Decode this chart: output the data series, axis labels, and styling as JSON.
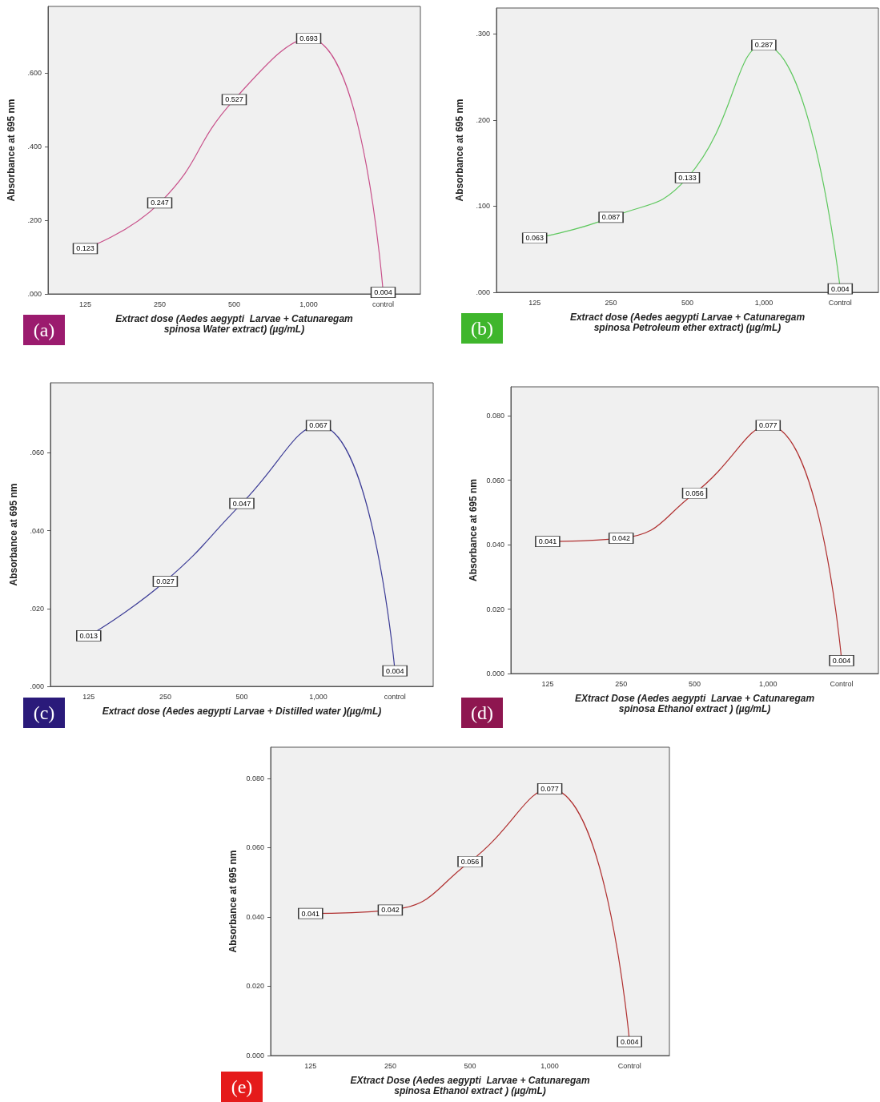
{
  "chart_data": [
    {
      "type": "line",
      "xlabel": "Extract dose (Aedes aegypti  Larvae + Catunaregam spinosa Water extract) (µg/mL)",
      "ylabel": "Absorbance at 695 nm",
      "categories": [
        "125",
        "250",
        "500",
        "1,000",
        "control"
      ],
      "series": [
        {
          "color": "#c8508a",
          "values": [
            0.123,
            0.247,
            0.527,
            0.693,
            0.004
          ]
        }
      ],
      "marker": "square",
      "ylim": [
        0,
        0.78
      ],
      "yticks": [
        {
          "value": 0,
          "label": ".000"
        },
        {
          "value": 0.2,
          "label": ".200"
        },
        {
          "value": 0.4,
          "label": ".400"
        },
        {
          "value": 0.6,
          "label": ".600"
        }
      ],
      "data_labels": true,
      "annotations": [
        "(a)"
      ]
    },
    {
      "type": "line",
      "xlabel": "Extract dose (Aedes aegypti Larvae + Catunaregam spinosa Petroleum ether extract) (µg/mL)",
      "ylabel": "Absorbance at 695 nm",
      "categories": [
        "125",
        "250",
        "500",
        "1,000",
        "Control"
      ],
      "series": [
        {
          "color": "#5ec85e",
          "values": [
            0.063,
            0.087,
            0.133,
            0.287,
            0.004
          ]
        }
      ],
      "marker": "square",
      "ylim": [
        0,
        0.33
      ],
      "yticks": [
        {
          "value": 0,
          "label": ".000"
        },
        {
          "value": 0.1,
          "label": ".100"
        },
        {
          "value": 0.2,
          "label": ".200"
        },
        {
          "value": 0.3,
          "label": ".300"
        }
      ],
      "data_labels": true,
      "annotations": [
        "(b)"
      ]
    },
    {
      "type": "line",
      "xlabel": "Extract dose (Aedes aegypti Larvae + Distilled water )(µg/mL)",
      "ylabel": "Absorbance at 695 nm",
      "categories": [
        "125",
        "250",
        "500",
        "1,000",
        "control"
      ],
      "series": [
        {
          "color": "#3c3c96",
          "values": [
            0.013,
            0.027,
            0.047,
            0.067,
            0.004
          ]
        }
      ],
      "marker": "square",
      "ylim": [
        0,
        0.078
      ],
      "yticks": [
        {
          "value": 0,
          "label": ".000"
        },
        {
          "value": 0.02,
          "label": ".020"
        },
        {
          "value": 0.04,
          "label": ".040"
        },
        {
          "value": 0.06,
          "label": ".060"
        }
      ],
      "data_labels": true,
      "annotations": [
        "(c)"
      ]
    },
    {
      "type": "line",
      "xlabel": "EXtract Dose (Aedes aegypti  Larvae + Catunaregam spinosa Ethanol extract ) (µg/mL)",
      "ylabel": "Absorbance at 695 nm",
      "categories": [
        "125",
        "250",
        "500",
        "1,000",
        "Control"
      ],
      "series": [
        {
          "color": "#b03030",
          "values": [
            0.041,
            0.042,
            0.056,
            0.077,
            0.004
          ]
        }
      ],
      "marker": "square",
      "ylim": [
        0,
        0.089
      ],
      "yticks": [
        {
          "value": 0,
          "label": "0.000"
        },
        {
          "value": 0.02,
          "label": "0.020"
        },
        {
          "value": 0.04,
          "label": "0.040"
        },
        {
          "value": 0.06,
          "label": "0.060"
        },
        {
          "value": 0.08,
          "label": "0.080"
        }
      ],
      "data_labels": true,
      "annotations": [
        "(d)"
      ]
    },
    {
      "type": "line",
      "xlabel": "EXtract Dose (Aedes aegypti  Larvae + Catunaregam spinosa Ethanol extract ) (µg/mL)",
      "ylabel": "Absorbance at 695 nm",
      "categories": [
        "125",
        "250",
        "500",
        "1,000",
        "Control"
      ],
      "series": [
        {
          "color": "#b03030",
          "values": [
            0.041,
            0.042,
            0.056,
            0.077,
            0.004
          ]
        }
      ],
      "marker": "square",
      "ylim": [
        0,
        0.089
      ],
      "yticks": [
        {
          "value": 0,
          "label": "0.000"
        },
        {
          "value": 0.02,
          "label": "0.020"
        },
        {
          "value": 0.04,
          "label": "0.040"
        },
        {
          "value": 0.06,
          "label": "0.060"
        },
        {
          "value": 0.08,
          "label": "0.080"
        }
      ],
      "data_labels": true,
      "annotations": [
        "(e)"
      ]
    }
  ]
}
